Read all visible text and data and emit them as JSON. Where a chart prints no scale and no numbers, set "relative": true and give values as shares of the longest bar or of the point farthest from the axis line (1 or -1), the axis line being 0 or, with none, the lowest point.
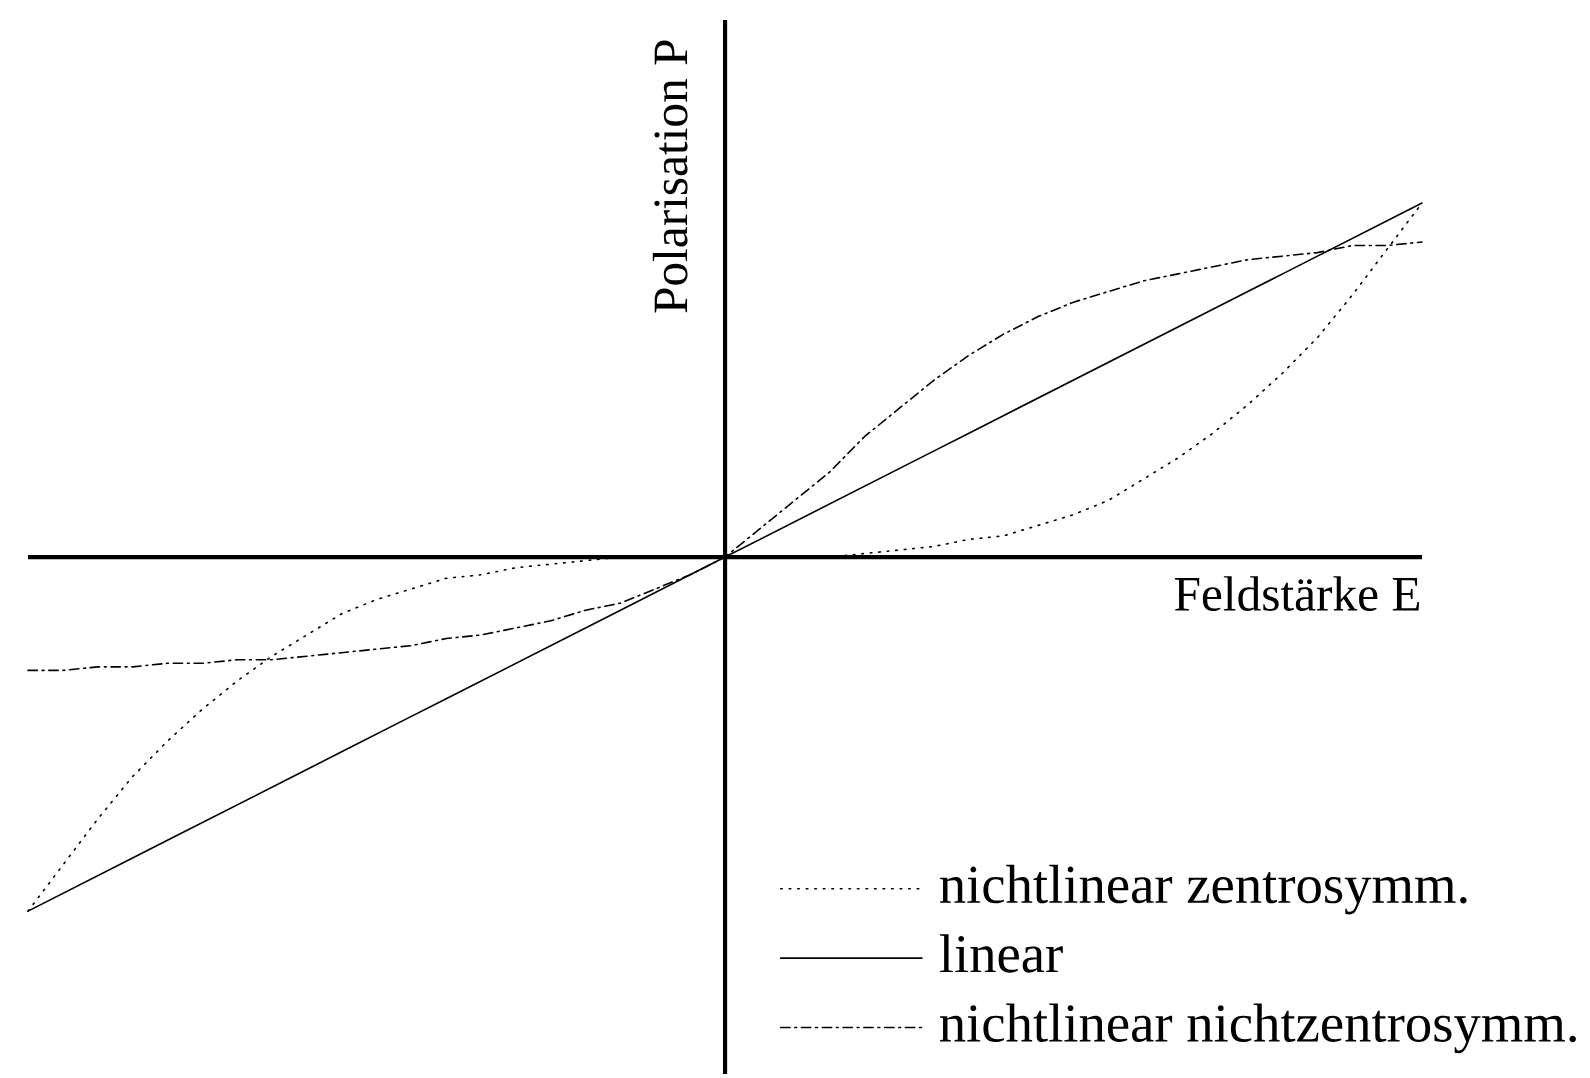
{
  "chart_data": {
    "type": "line",
    "relative": true,
    "xlabel": "Feldstärke E",
    "ylabel": "Polarisation P",
    "categories": [
      null,
      null,
      null,
      null,
      null,
      null,
      null,
      null,
      null,
      null,
      null,
      null,
      null,
      null,
      null,
      null,
      null,
      null,
      null,
      null,
      null,
      null,
      null,
      null,
      null,
      null,
      null,
      null,
      null,
      null,
      null,
      null,
      null,
      null,
      null,
      null,
      null,
      null,
      null,
      null,
      null
    ],
    "series": [
      {
        "name": "nichtlinear zentrosymm.",
        "color": "#000000",
        "line_style": "dotted",
        "values": [
          -1.0,
          -0.87,
          -0.74,
          -0.62,
          -0.52,
          -0.43,
          -0.35,
          -0.28,
          -0.22,
          -0.16,
          -0.12,
          -0.09,
          -0.06,
          -0.05,
          -0.03,
          -0.02,
          -0.01,
          0,
          0,
          0,
          0,
          0,
          0,
          0,
          0.01,
          0.02,
          0.03,
          0.05,
          0.06,
          0.09,
          0.12,
          0.16,
          0.22,
          0.28,
          0.35,
          0.43,
          0.52,
          0.62,
          0.74,
          0.87,
          1.0
        ]
      },
      {
        "name": "linear",
        "color": "#000000",
        "line_style": "solid",
        "values": [
          -1.0,
          -0.95,
          -0.9,
          -0.85,
          -0.8,
          -0.75,
          -0.7,
          -0.65,
          -0.6,
          -0.55,
          -0.5,
          -0.45,
          -0.4,
          -0.35,
          -0.3,
          -0.25,
          -0.2,
          -0.15,
          -0.1,
          -0.05,
          0,
          0.05,
          0.1,
          0.15,
          0.2,
          0.25,
          0.3,
          0.35,
          0.4,
          0.45,
          0.5,
          0.55,
          0.6,
          0.65,
          0.7,
          0.75,
          0.8,
          0.85,
          0.9,
          0.95,
          1.0
        ]
      },
      {
        "name": "nichtlinear nichtzentrosymm.",
        "color": "#000000",
        "line_style": "dashed",
        "values": [
          -0.32,
          -0.32,
          -0.31,
          -0.31,
          -0.3,
          -0.3,
          -0.29,
          -0.29,
          -0.28,
          -0.27,
          -0.26,
          -0.25,
          -0.23,
          -0.22,
          -0.2,
          -0.18,
          -0.15,
          -0.13,
          -0.09,
          -0.05,
          0,
          0.08,
          0.16,
          0.24,
          0.34,
          0.42,
          0.5,
          0.57,
          0.63,
          0.68,
          0.72,
          0.75,
          0.78,
          0.8,
          0.82,
          0.84,
          0.85,
          0.86,
          0.88,
          0.88,
          0.89
        ]
      }
    ],
    "legend": "bottom right",
    "tick_labels": false
  }
}
